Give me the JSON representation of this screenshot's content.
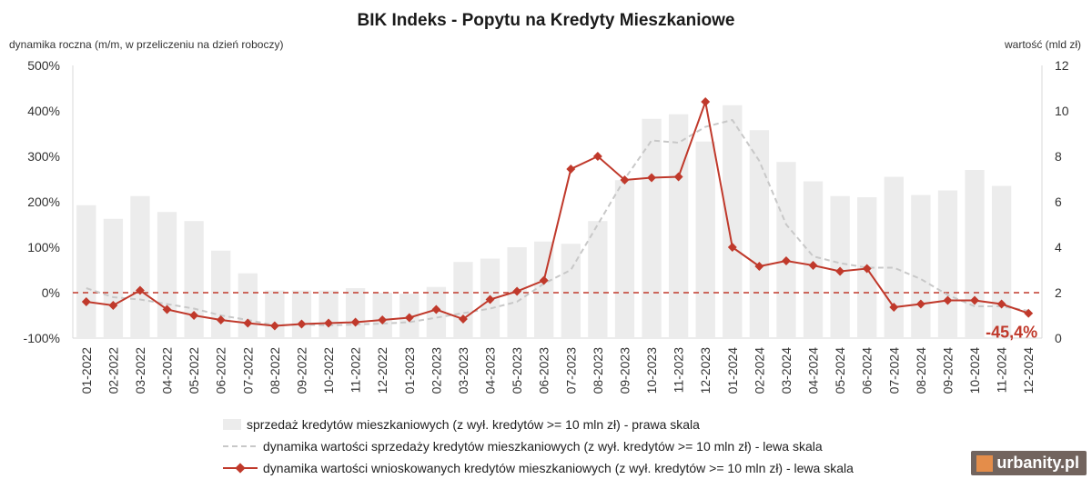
{
  "title": "BIK Indeks - Popytu na Kredyty Mieszkaniowe",
  "left_axis_label": "dynamika roczna (m/m, w przeliczeniu na dzień roboczy)",
  "right_axis_label": "wartość (mld zł)",
  "legend": {
    "bars": "sprzedaż kredytów mieszkaniowych (z wył. kredytów >= 10 mln zł) - prawa skala",
    "dashed": "dynamika wartości sprzedaży kredytów mieszkaniowych (z wył. kredytów >= 10 mln zł) - lewa skala",
    "solid": "dynamika wartości wnioskowanych kredytów mieszkaniowych (z wył. kredytów >= 10 mln zł) - lewa skala"
  },
  "watermark": "urbanity.pl",
  "chart_data": {
    "type": "bar",
    "title": "BIK Indeks - Popytu na Kredyty Mieszkaniowe",
    "categories": [
      "01-2022",
      "02-2022",
      "03-2022",
      "04-2022",
      "05-2022",
      "06-2022",
      "07-2022",
      "08-2022",
      "09-2022",
      "10-2022",
      "11-2022",
      "12-2022",
      "01-2023",
      "02-2023",
      "03-2023",
      "04-2023",
      "05-2023",
      "06-2023",
      "07-2023",
      "08-2023",
      "09-2023",
      "10-2023",
      "11-2023",
      "12-2023",
      "01-2024",
      "02-2024",
      "03-2024",
      "04-2024",
      "05-2024",
      "06-2024",
      "07-2024",
      "08-2024",
      "09-2024",
      "10-2024",
      "11-2024",
      "12-2024"
    ],
    "left_axis": {
      "label": "dynamika roczna (m/m, w przeliczeniu na dzień roboczy)",
      "range": [
        -100,
        500
      ],
      "ticks": [
        "-100%",
        "0%",
        "100%",
        "200%",
        "300%",
        "400%",
        "500%"
      ]
    },
    "right_axis": {
      "label": "wartość (mld zł)",
      "range": [
        0,
        12
      ],
      "ticks": [
        "0",
        "2",
        "4",
        "6",
        "8",
        "10",
        "12"
      ]
    },
    "reference_line": {
      "value": 0,
      "axis": "left",
      "color": "#c0392b",
      "style": "dashed"
    },
    "series": [
      {
        "name": "sprzedaż kredytów mieszkaniowych (z wył. kredytów >= 10 mln zł) - prawa skala",
        "kind": "bar",
        "axis": "right",
        "color": "#ececec",
        "values": [
          5.85,
          5.25,
          6.25,
          5.55,
          5.15,
          3.85,
          2.85,
          2.1,
          2.1,
          2.1,
          2.2,
          2.0,
          1.95,
          2.25,
          3.35,
          3.5,
          4.0,
          4.25,
          4.15,
          5.15,
          6.95,
          9.65,
          9.85,
          8.65,
          10.25,
          9.15,
          7.75,
          6.9,
          6.25,
          6.2,
          7.1,
          6.3,
          6.5,
          7.4,
          6.7,
          0
        ]
      },
      {
        "name": "dynamika wartości sprzedaży kredytów mieszkaniowych (z wył. kredytów >= 10 mln zł) - lewa skala",
        "kind": "dashed-line",
        "axis": "left",
        "color": "#c8c8c8",
        "values": [
          10,
          -10,
          -15,
          -25,
          -35,
          -50,
          -60,
          -72,
          -70,
          -72,
          -70,
          -68,
          -65,
          -55,
          -45,
          -35,
          -20,
          20,
          50,
          150,
          250,
          335,
          330,
          365,
          380,
          290,
          150,
          80,
          65,
          55,
          55,
          30,
          -5,
          -30,
          -30,
          -40
        ]
      },
      {
        "name": "dynamika wartości wnioskowanych kredytów mieszkaniowych (z wył. kredytów >= 10 mln zł) - lewa skala",
        "kind": "line",
        "axis": "left",
        "color": "#c0392b",
        "values": [
          -20,
          -28,
          5,
          -37,
          -50,
          -60,
          -67,
          -73,
          -69,
          -67,
          -65,
          -60,
          -55,
          -37,
          -58,
          -15,
          3,
          27,
          272,
          300,
          248,
          253,
          255,
          420,
          100,
          58,
          70,
          60,
          47,
          53,
          -32,
          -25,
          -17,
          -17,
          -25,
          -45.4
        ]
      }
    ],
    "annotation": {
      "text": "-45,4%",
      "category": "12-2024",
      "color": "#c0392b"
    }
  }
}
